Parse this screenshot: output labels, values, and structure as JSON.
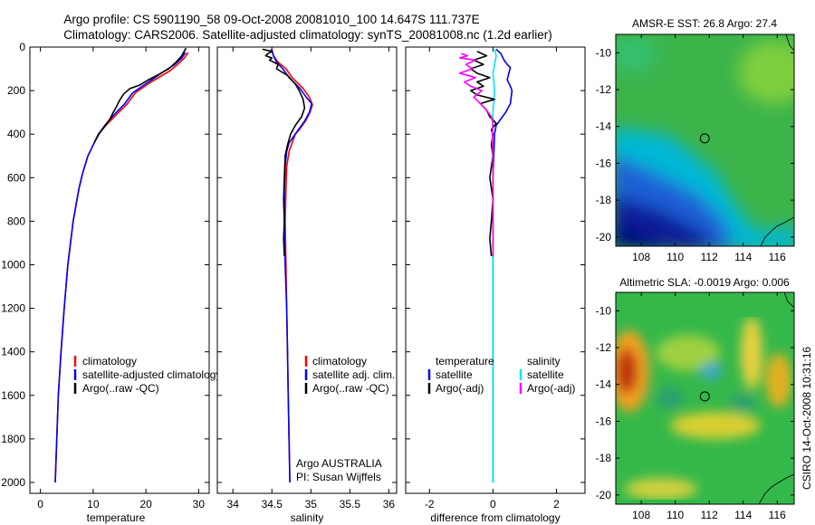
{
  "header": {
    "title_line1": "Argo profile: CS 5901190_58 09-Oct-2008 20081010_100 14.647S 111.737E",
    "title_line2": "Climatology: CARS2006. Satellite-adjusted climatology: synTS_20081008.nc (1.2d earlier)"
  },
  "side_text": "CSIRO 14-Oct-2008 10:31:16",
  "colors": {
    "climatology": "#ff0000",
    "satellite": "#0000ff",
    "argo": "#000000",
    "salinity_satellite": "#00e5ff",
    "salinity_argo": "#ff00ff"
  },
  "chart_data": [
    {
      "type": "line",
      "id": "temperature",
      "xlabel": "temperature",
      "ylabel": "",
      "xlim": [
        -2,
        32
      ],
      "ylim": [
        2050,
        0
      ],
      "xticks": [
        "0",
        "10",
        "20",
        "30"
      ],
      "yticks": [
        "0",
        "200",
        "400",
        "600",
        "800",
        "1000",
        "1200",
        "1400",
        "1600",
        "1800",
        "2000"
      ],
      "legend": [
        "climatology",
        "satellite-adjusted climatology",
        "Argo(..raw -QC)"
      ],
      "series": [
        {
          "name": "climatology",
          "color": "#ff0000",
          "points": [
            [
              28,
              25
            ],
            [
              27.3,
              50
            ],
            [
              26,
              80
            ],
            [
              24.5,
              110
            ],
            [
              21,
              160
            ],
            [
              18,
              210
            ],
            [
              16.5,
              260
            ],
            [
              14,
              320
            ],
            [
              12.4,
              360
            ],
            [
              11,
              400
            ],
            [
              10,
              450
            ],
            [
              9,
              500
            ],
            [
              8,
              580
            ],
            [
              7.3,
              650
            ],
            [
              6.2,
              800
            ],
            [
              5.2,
              1000
            ],
            [
              4.5,
              1200
            ],
            [
              3.9,
              1400
            ],
            [
              3.4,
              1600
            ],
            [
              3.1,
              1800
            ],
            [
              2.8,
              2000
            ]
          ]
        },
        {
          "name": "satellite",
          "color": "#0000ff",
          "points": [
            [
              27.5,
              25
            ],
            [
              26.8,
              50
            ],
            [
              25.5,
              80
            ],
            [
              23.5,
              110
            ],
            [
              20.5,
              160
            ],
            [
              17.5,
              210
            ],
            [
              16,
              260
            ],
            [
              13.6,
              320
            ],
            [
              12.2,
              360
            ],
            [
              11,
              400
            ],
            [
              10,
              450
            ],
            [
              9,
              500
            ],
            [
              8,
              580
            ],
            [
              7.3,
              650
            ],
            [
              6.2,
              800
            ],
            [
              5.2,
              1000
            ],
            [
              4.5,
              1200
            ],
            [
              3.9,
              1400
            ],
            [
              3.4,
              1600
            ],
            [
              3.1,
              1800
            ],
            [
              2.8,
              2000
            ]
          ]
        },
        {
          "name": "argo",
          "color": "#000000",
          "points": [
            [
              27.6,
              5
            ],
            [
              26.8,
              40
            ],
            [
              25.7,
              70
            ],
            [
              24.3,
              100
            ],
            [
              22.5,
              125
            ],
            [
              20.5,
              150
            ],
            [
              18.8,
              175
            ],
            [
              17,
              190
            ],
            [
              15.8,
              215
            ],
            [
              15,
              245
            ],
            [
              14.4,
              275
            ],
            [
              13.7,
              305
            ],
            [
              13.2,
              330
            ],
            [
              12.3,
              360
            ],
            [
              11.2,
              395
            ],
            [
              10.2,
              440
            ]
          ]
        }
      ]
    },
    {
      "type": "line",
      "id": "salinity",
      "xlabel": "salinity",
      "xlim": [
        33.8,
        36.1
      ],
      "ylim": [
        2050,
        0
      ],
      "xticks": [
        "34",
        "34.5",
        "35",
        "35.5",
        "36"
      ],
      "legend": [
        "climatology",
        "satellite adj. clim.",
        "Argo(..raw -QC)"
      ],
      "annotation": [
        "Argo AUSTRALIA",
        "PI: Susan Wijffels"
      ],
      "series": [
        {
          "name": "climatology",
          "color": "#ff0000",
          "points": [
            [
              34.5,
              10
            ],
            [
              34.52,
              40
            ],
            [
              34.58,
              70
            ],
            [
              34.68,
              100
            ],
            [
              34.76,
              140
            ],
            [
              34.9,
              190
            ],
            [
              34.98,
              230
            ],
            [
              35.02,
              265
            ],
            [
              34.99,
              300
            ],
            [
              34.93,
              340
            ],
            [
              34.85,
              380
            ],
            [
              34.8,
              400
            ],
            [
              34.76,
              440
            ],
            [
              34.72,
              480
            ],
            [
              34.69,
              550
            ],
            [
              34.68,
              650
            ],
            [
              34.67,
              800
            ],
            [
              34.68,
              1000
            ],
            [
              34.69,
              1200
            ],
            [
              34.7,
              1400
            ],
            [
              34.71,
              1600
            ],
            [
              34.72,
              1800
            ],
            [
              34.73,
              2000
            ]
          ]
        },
        {
          "name": "satellite",
          "color": "#0000ff",
          "points": [
            [
              34.49,
              10
            ],
            [
              34.52,
              40
            ],
            [
              34.56,
              70
            ],
            [
              34.64,
              100
            ],
            [
              34.72,
              140
            ],
            [
              34.86,
              190
            ],
            [
              34.94,
              230
            ],
            [
              35.01,
              260
            ],
            [
              34.98,
              300
            ],
            [
              34.92,
              340
            ],
            [
              34.84,
              380
            ],
            [
              34.78,
              410
            ],
            [
              34.72,
              440
            ],
            [
              34.69,
              480
            ],
            [
              34.67,
              550
            ],
            [
              34.66,
              650
            ],
            [
              34.66,
              800
            ],
            [
              34.67,
              1000
            ],
            [
              34.69,
              1200
            ],
            [
              34.7,
              1400
            ],
            [
              34.71,
              1600
            ],
            [
              34.72,
              1800
            ],
            [
              34.73,
              2000
            ]
          ]
        },
        {
          "name": "argo",
          "color": "#000000",
          "points": [
            [
              34.38,
              10
            ],
            [
              34.5,
              20
            ],
            [
              34.45,
              30
            ],
            [
              34.42,
              40
            ],
            [
              34.5,
              50
            ],
            [
              34.47,
              60
            ],
            [
              34.58,
              80
            ],
            [
              34.56,
              100
            ],
            [
              34.7,
              130
            ],
            [
              34.8,
              170
            ],
            [
              34.85,
              200
            ],
            [
              34.9,
              240
            ],
            [
              34.92,
              280
            ],
            [
              34.88,
              320
            ],
            [
              34.8,
              360
            ],
            [
              34.74,
              400
            ],
            [
              34.7,
              450
            ],
            [
              34.67,
              500
            ],
            [
              34.66,
              600
            ],
            [
              34.65,
              700
            ],
            [
              34.66,
              800
            ],
            [
              34.65,
              880
            ],
            [
              34.66,
              960
            ]
          ]
        }
      ]
    },
    {
      "type": "line",
      "id": "difference",
      "xlabel": "difference from climatology",
      "xlim": [
        -2.75,
        2.9
      ],
      "ylim": [
        2050,
        0
      ],
      "xticks": [
        "-2",
        "0",
        "2"
      ],
      "legend": {
        "temperature": [
          "temperature",
          "satellite",
          "Argo(-adj)"
        ],
        "salinity": [
          "salinity",
          "satellite",
          "Argo(-adj)"
        ]
      },
      "series": [
        {
          "name": "temperature satellite",
          "color": "#0000ff",
          "points": [
            [
              0.1,
              10
            ],
            [
              0.25,
              30
            ],
            [
              0.35,
              60
            ],
            [
              0.45,
              80
            ],
            [
              0.55,
              95
            ],
            [
              0.5,
              120
            ],
            [
              0.45,
              150
            ],
            [
              0.55,
              180
            ],
            [
              0.6,
              200
            ],
            [
              0.55,
              260
            ],
            [
              0.4,
              300
            ],
            [
              0.25,
              330
            ],
            [
              0.1,
              360
            ],
            [
              0.05,
              400
            ],
            [
              0,
              600
            ],
            [
              0,
              800
            ],
            [
              0,
              2000
            ]
          ]
        },
        {
          "name": "salinity satellite",
          "color": "#00e5ff",
          "points": [
            [
              0.05,
              10
            ],
            [
              0.1,
              40
            ],
            [
              0.05,
              80
            ],
            [
              0,
              120
            ],
            [
              0.05,
              200
            ],
            [
              0,
              300
            ],
            [
              -0.02,
              400
            ],
            [
              0,
              600
            ],
            [
              0,
              800
            ],
            [
              0,
              2000
            ]
          ]
        },
        {
          "name": "temperature argo",
          "color": "#000000",
          "points": [
            [
              -0.5,
              20
            ],
            [
              -0.2,
              40
            ],
            [
              -0.6,
              60
            ],
            [
              -0.3,
              80
            ],
            [
              -0.7,
              100
            ],
            [
              -0.5,
              120
            ],
            [
              -0.1,
              140
            ],
            [
              -0.5,
              160
            ],
            [
              -0.3,
              180
            ],
            [
              -0.7,
              200
            ],
            [
              -0.5,
              220
            ],
            [
              0.05,
              240
            ],
            [
              -0.4,
              260
            ],
            [
              -0.2,
              290
            ],
            [
              -0.1,
              320
            ],
            [
              0.1,
              350
            ],
            [
              -0.05,
              380
            ],
            [
              0,
              400
            ],
            [
              -0.05,
              450
            ],
            [
              0,
              500
            ],
            [
              -0.1,
              600
            ],
            [
              0,
              700
            ],
            [
              -0.05,
              800
            ],
            [
              -0.1,
              880
            ],
            [
              -0.05,
              960
            ]
          ]
        },
        {
          "name": "salinity argo",
          "color": "#ff00ff",
          "points": [
            [
              -1.0,
              30
            ],
            [
              -0.8,
              40
            ],
            [
              -1.05,
              50
            ],
            [
              -0.55,
              60
            ],
            [
              -0.85,
              80
            ],
            [
              -0.65,
              100
            ],
            [
              -1.05,
              120
            ],
            [
              -0.55,
              140
            ],
            [
              -0.9,
              160
            ],
            [
              -0.7,
              180
            ],
            [
              -0.35,
              200
            ],
            [
              -0.6,
              230
            ],
            [
              -0.4,
              260
            ],
            [
              -0.2,
              290
            ],
            [
              -0.05,
              320
            ],
            [
              0,
              350
            ],
            [
              -0.02,
              400
            ],
            [
              0,
              500
            ],
            [
              0,
              800
            ],
            [
              0,
              960
            ]
          ]
        }
      ]
    },
    {
      "type": "heatmap",
      "id": "sst_map",
      "title": "AMSR-E SST: 26.8 Argo: 27.4",
      "xlim": [
        106.5,
        117
      ],
      "ylim": [
        -20.5,
        -9
      ],
      "xticks": [
        "108",
        "110",
        "112",
        "114",
        "116"
      ],
      "yticks": [
        "-10",
        "-12",
        "-14",
        "-16",
        "-18",
        "-20"
      ],
      "marker": [
        111.737,
        -14.647
      ]
    },
    {
      "type": "heatmap",
      "id": "sla_map",
      "title": "Altimetric SLA: -0.0019 Argo: 0.006",
      "xlim": [
        106.5,
        117
      ],
      "ylim": [
        -20.5,
        -9
      ],
      "xticks": [
        "108",
        "110",
        "112",
        "114",
        "116"
      ],
      "yticks": [
        "-10",
        "-12",
        "-14",
        "-16",
        "-18",
        "-20"
      ],
      "marker": [
        111.737,
        -14.647
      ]
    }
  ]
}
